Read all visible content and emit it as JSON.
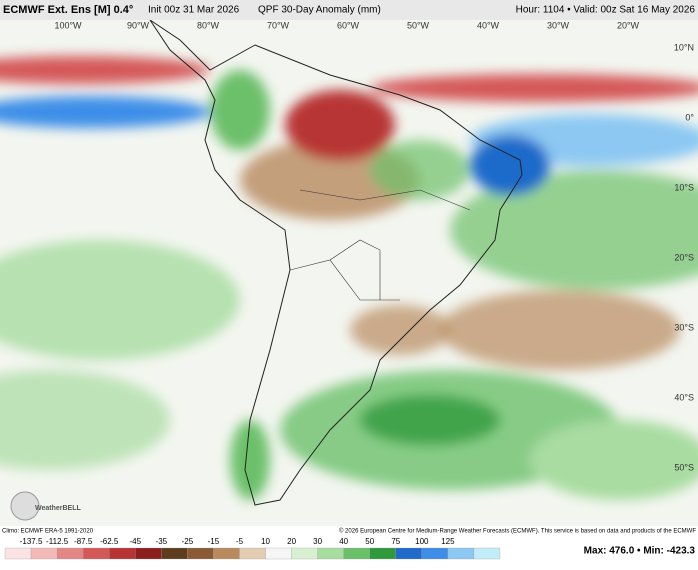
{
  "header": {
    "model": "ECMWF Ext. Ens [M] 0.4°",
    "init": "Init 00z 31 Mar 2026",
    "product": "QPF 30-Day Anomaly (mm)",
    "valid": "Hour: 1104 • Valid: 00z Sat 16 May 2026"
  },
  "map": {
    "lon_labels": [
      "100°W",
      "90°W",
      "80°W",
      "70°W",
      "60°W",
      "50°W",
      "40°W",
      "30°W",
      "20°W"
    ],
    "lat_labels": [
      "10°N",
      "0°",
      "10°S",
      "20°S",
      "30°S",
      "40°S",
      "50°S"
    ],
    "logo": "WeatherBELL"
  },
  "footer": {
    "climo": "Climo: ECMWF ERA-5 1991-2020",
    "copyright": "© 2026 European Centre for Medium-Range Weather Forecasts (ECMWF). This service is based on data and products of the ECMWF",
    "stats": "Max: 476.0 • Min: -423.3"
  },
  "colorbar": {
    "ticks": [
      -137.5,
      -112.5,
      -87.5,
      -62.5,
      -45,
      -35,
      -25,
      -15,
      -5,
      10,
      20,
      30,
      40,
      50,
      75,
      100,
      125
    ],
    "colors": [
      "#fbe3e3",
      "#f2b9b9",
      "#e38686",
      "#d45858",
      "#b83434",
      "#8c1e1e",
      "#5e3c1e",
      "#8a5a34",
      "#b88a5e",
      "#e2cdb3",
      "#f5f5f5",
      "#d7f0d0",
      "#a8dca0",
      "#6cc06a",
      "#2f9a3c",
      "#1f6aca",
      "#3e8ee8",
      "#8cc8f2",
      "#c2ecf8"
    ]
  }
}
